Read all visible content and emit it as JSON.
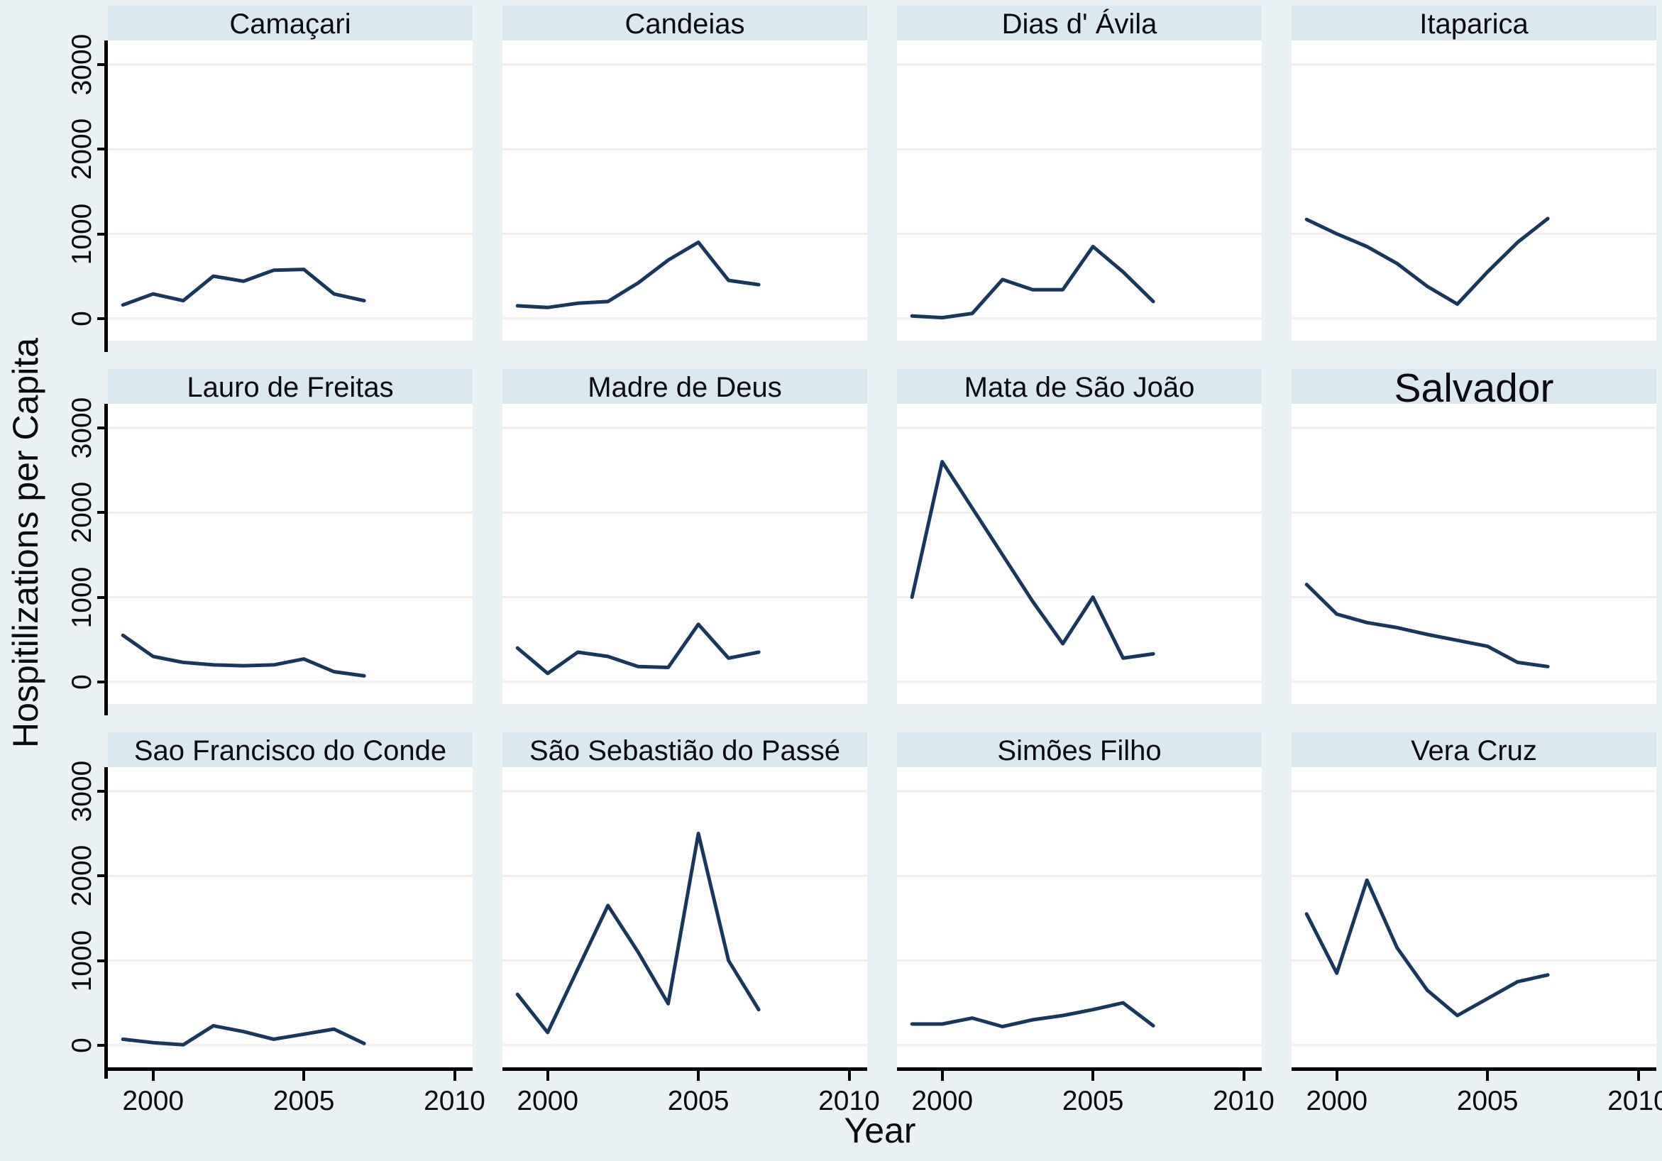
{
  "colors": {
    "bg": "#eaf1f5",
    "titlebar": "#dce8f0",
    "plotbg": "#ffffff",
    "grid": "#f3eded",
    "line": "#17375e",
    "axis": "#000000",
    "text": "#0a0a10"
  },
  "chart_data": {
    "type": "line",
    "layout": "3x4 small multiples (faceted by municipality)",
    "title": "",
    "xlabel": "Year",
    "ylabel": "Hospitilizations per Capita",
    "x": [
      1999,
      2000,
      2001,
      2002,
      2003,
      2004,
      2005,
      2006,
      2007
    ],
    "xlim": [
      1998.5,
      2010.6
    ],
    "ylim": [
      0,
      3000
    ],
    "x_gridlines": [
      2000,
      2005,
      2010
    ],
    "x_tick_labels": [
      "2000",
      "2005",
      "2010"
    ],
    "y_gridlines": [
      0,
      1000,
      2000,
      3000
    ],
    "y_tick_labels": [
      "0",
      "1000",
      "2000",
      "3000"
    ],
    "grid": "horizontal only",
    "legend": "none",
    "series": [
      {
        "name": "Camaçari",
        "values": [
          160,
          290,
          210,
          500,
          440,
          570,
          580,
          290,
          210
        ]
      },
      {
        "name": "Candeias",
        "values": [
          150,
          130,
          180,
          200,
          420,
          690,
          900,
          450,
          400
        ]
      },
      {
        "name": "Dias d' Ávila",
        "values": [
          30,
          10,
          60,
          460,
          340,
          340,
          850,
          550,
          200
        ]
      },
      {
        "name": "Itaparica",
        "values": [
          1170,
          1000,
          850,
          650,
          380,
          170,
          550,
          900,
          1180
        ]
      },
      {
        "name": "Lauro de Freitas",
        "values": [
          550,
          300,
          230,
          200,
          190,
          200,
          270,
          120,
          70
        ]
      },
      {
        "name": "Madre de Deus",
        "values": [
          400,
          100,
          350,
          300,
          180,
          170,
          680,
          280,
          350
        ]
      },
      {
        "name": "Mata de São João",
        "values": [
          1000,
          2600,
          2050,
          1500,
          950,
          450,
          1000,
          280,
          330
        ]
      },
      {
        "name": "Salvador",
        "values": [
          1150,
          800,
          700,
          640,
          560,
          490,
          420,
          230,
          180
        ]
      },
      {
        "name": "Sao Francisco do Conde",
        "values": [
          70,
          30,
          5,
          230,
          160,
          70,
          130,
          190,
          20
        ]
      },
      {
        "name": "São Sebastião do Passé",
        "values": [
          600,
          150,
          900,
          1650,
          1100,
          490,
          2500,
          1000,
          420
        ]
      },
      {
        "name": "Simões Filho",
        "values": [
          250,
          250,
          320,
          220,
          300,
          350,
          420,
          500,
          230
        ]
      },
      {
        "name": "Vera Cruz",
        "values": [
          1550,
          850,
          1950,
          1150,
          650,
          350,
          550,
          750,
          830
        ]
      }
    ]
  }
}
